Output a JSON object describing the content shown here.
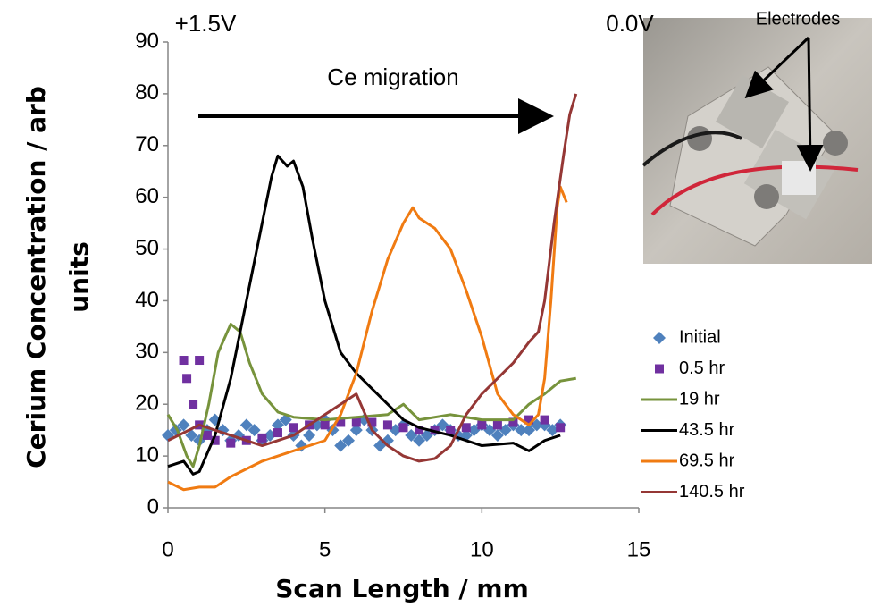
{
  "chart_data": {
    "type": "line",
    "x_label": "Scan Length / mm",
    "y_label": [
      "Cerium Concentration / arb",
      "units"
    ],
    "xlim": [
      0,
      15
    ],
    "xticks": [
      0,
      5,
      10,
      15
    ],
    "ylim": [
      0,
      90
    ],
    "yticks": [
      0,
      10,
      20,
      30,
      40,
      50,
      60,
      70,
      80,
      90
    ],
    "grid": false,
    "legend": "right",
    "annotations": [
      "+1.5V",
      "0.0V",
      "Ce migration",
      "Electrodes"
    ],
    "series": [
      {
        "name": "Initial",
        "color": "#4f81bd",
        "mode": "diamond",
        "x": [
          0,
          0.25,
          0.5,
          0.75,
          1,
          1.25,
          1.5,
          1.75,
          2,
          2.25,
          2.5,
          2.75,
          3,
          3.25,
          3.5,
          3.75,
          4,
          4.25,
          4.5,
          4.75,
          5,
          5.25,
          5.5,
          5.75,
          6,
          6.25,
          6.5,
          6.75,
          7,
          7.25,
          7.5,
          7.75,
          8,
          8.25,
          8.5,
          8.75,
          9,
          9.25,
          9.5,
          9.75,
          10,
          10.25,
          10.5,
          10.75,
          11,
          11.25,
          11.5,
          11.75,
          12,
          12.25,
          12.5
        ],
        "values": [
          14,
          15,
          16,
          14,
          13,
          15,
          17,
          15,
          13,
          14,
          16,
          15,
          13,
          14,
          16,
          17,
          14,
          12,
          14,
          16,
          17,
          15,
          12,
          13,
          15,
          17,
          15,
          12,
          13,
          15,
          16,
          14,
          13,
          14,
          15,
          16,
          15,
          14,
          14,
          15,
          16,
          15,
          14,
          15,
          16,
          15,
          15,
          16,
          16,
          15,
          16
        ]
      },
      {
        "name": "0.5 hr",
        "color": "#7030a0",
        "mode": "square",
        "x": [
          0.5,
          1,
          0.6,
          0.8,
          1,
          1.25,
          1.5,
          2,
          2.5,
          3,
          3.5,
          4,
          4.5,
          5,
          5.5,
          6,
          6.5,
          7,
          7.5,
          8,
          8.5,
          9,
          9.5,
          10,
          10.5,
          11,
          11.5,
          12,
          12.5
        ],
        "values": [
          28.5,
          28.5,
          25,
          20,
          16,
          14,
          13,
          12.5,
          13,
          13.5,
          14.5,
          15.5,
          16,
          16,
          16.5,
          16.5,
          16.5,
          16,
          15.5,
          15,
          15,
          15,
          15.5,
          16,
          16,
          16.5,
          17,
          17,
          15.5
        ]
      },
      {
        "name": "19 hr",
        "color": "#77933c",
        "mode": "line",
        "x": [
          0,
          0.3,
          0.6,
          0.8,
          1,
          1.3,
          1.6,
          2,
          2.3,
          2.6,
          3,
          3.5,
          4,
          5,
          6,
          7,
          7.5,
          8,
          9,
          10,
          11,
          11.5,
          12,
          12.5,
          13
        ],
        "values": [
          18,
          15,
          10,
          8,
          12,
          20,
          30,
          35.5,
          34,
          28,
          22,
          18.5,
          17.5,
          17,
          17.5,
          18,
          20,
          17,
          18,
          17,
          17,
          20,
          22,
          24.5,
          25
        ]
      },
      {
        "name": "43.5 hr",
        "color": "#000000",
        "mode": "line",
        "x": [
          0,
          0.5,
          0.8,
          1,
          1.5,
          2,
          2.5,
          3,
          3.3,
          3.5,
          3.8,
          4,
          4.3,
          4.6,
          5,
          5.5,
          6,
          6.5,
          7,
          7.5,
          8,
          9,
          10,
          11,
          11.5,
          12,
          12.5
        ],
        "values": [
          8,
          9,
          6.5,
          7,
          14,
          25,
          40,
          55,
          64,
          68,
          66,
          67,
          62,
          52,
          40,
          30,
          26,
          23,
          20,
          17,
          15.5,
          14,
          12,
          12.5,
          11,
          13,
          14
        ]
      },
      {
        "name": "69.5 hr",
        "color": "#f07b12",
        "mode": "line",
        "x": [
          0,
          0.5,
          1,
          1.5,
          2,
          3,
          4,
          5,
          5.5,
          6,
          6.5,
          7,
          7.5,
          7.8,
          8,
          8.5,
          9,
          9.5,
          10,
          10.5,
          11,
          11.5,
          11.8,
          12,
          12.2,
          12.4,
          12.5,
          12.7
        ],
        "values": [
          5,
          3.5,
          4,
          4,
          6,
          9,
          11,
          13,
          18,
          26,
          38,
          48,
          55,
          58,
          56,
          54,
          50,
          42,
          33,
          22,
          18,
          16,
          18,
          25,
          40,
          58,
          62,
          59
        ]
      },
      {
        "name": "140.5 hr",
        "color": "#953735",
        "mode": "line",
        "x": [
          0,
          1,
          2,
          3,
          4,
          5,
          5.5,
          6,
          6.5,
          7,
          7.5,
          8,
          8.5,
          9,
          9.5,
          10,
          10.5,
          11,
          11.5,
          11.8,
          12,
          12.3,
          12.6,
          12.8,
          13
        ],
        "values": [
          13,
          16,
          14,
          12,
          14,
          18,
          20,
          22,
          15,
          12,
          10,
          9,
          9.5,
          12,
          18,
          22,
          25,
          28,
          32,
          34,
          40,
          55,
          68,
          76,
          80
        ]
      }
    ]
  }
}
